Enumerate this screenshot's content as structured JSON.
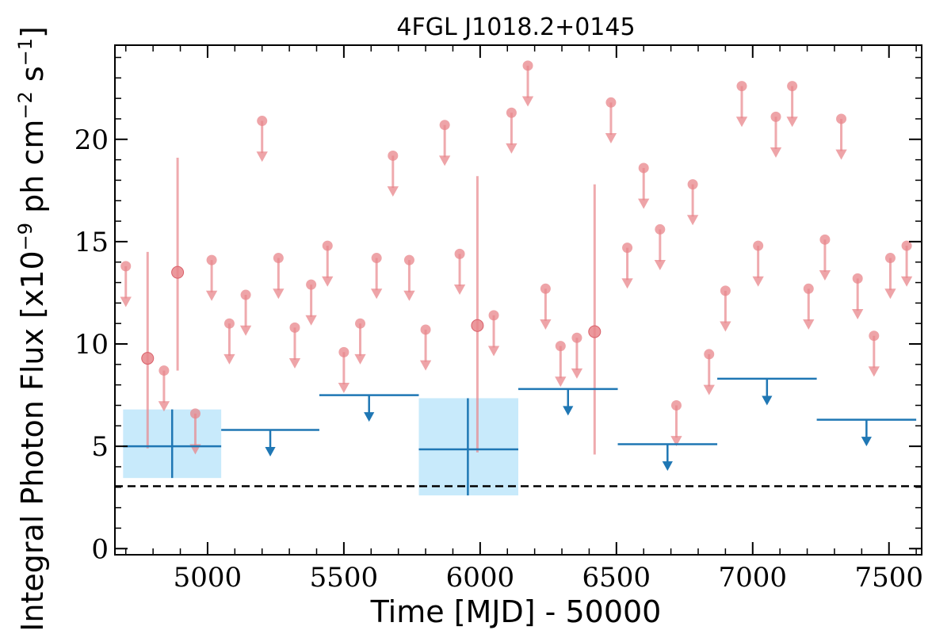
{
  "chart_data": {
    "type": "scatter",
    "title": "4FGL J1018.2+0145",
    "xlabel": "Time [MJD] - 50000",
    "ylabel": "Integral Photon Flux [x10",
    "ylabel_exp1": "−9",
    "ylabel_mid": " ph cm",
    "ylabel_exp2": "−2",
    "ylabel_end": " s",
    "ylabel_exp3": "−1",
    "ylabel_close": "]",
    "xlim": [
      4660,
      7620
    ],
    "ylim": [
      -0.3,
      24.6
    ],
    "xticks": [
      5000,
      5500,
      6000,
      6500,
      7000,
      7500
    ],
    "yticks": [
      0,
      5,
      10,
      15,
      20
    ],
    "baseline": 3.05,
    "colors": {
      "short_bins": "#e8868b",
      "long_bins": "#1f77b4",
      "error_box": "#c8eafb",
      "baseline": "#000000"
    },
    "short_bin_upper_limits": [
      [
        4700,
        13.8
      ],
      [
        4840,
        8.7
      ],
      [
        4955,
        6.6
      ],
      [
        5015,
        14.1
      ],
      [
        5080,
        11.0
      ],
      [
        5140,
        12.4
      ],
      [
        5200,
        20.9
      ],
      [
        5260,
        14.2
      ],
      [
        5320,
        10.8
      ],
      [
        5380,
        12.9
      ],
      [
        5440,
        14.8
      ],
      [
        5500,
        9.6
      ],
      [
        5560,
        11.0
      ],
      [
        5620,
        14.2
      ],
      [
        5680,
        19.2
      ],
      [
        5740,
        14.1
      ],
      [
        5800,
        10.7
      ],
      [
        5870,
        20.7
      ],
      [
        5925,
        14.4
      ],
      [
        6050,
        11.4
      ],
      [
        6115,
        21.3
      ],
      [
        6175,
        23.6
      ],
      [
        6240,
        12.7
      ],
      [
        6295,
        9.9
      ],
      [
        6355,
        10.3
      ],
      [
        6480,
        21.8
      ],
      [
        6540,
        14.7
      ],
      [
        6600,
        18.6
      ],
      [
        6660,
        15.6
      ],
      [
        6720,
        7.0
      ],
      [
        6780,
        17.8
      ],
      [
        6840,
        9.5
      ],
      [
        6900,
        12.6
      ],
      [
        6960,
        22.6
      ],
      [
        7020,
        14.8
      ],
      [
        7085,
        21.1
      ],
      [
        7145,
        22.6
      ],
      [
        7205,
        12.7
      ],
      [
        7265,
        15.1
      ],
      [
        7325,
        21.0
      ],
      [
        7385,
        13.2
      ],
      [
        7445,
        10.4
      ],
      [
        7505,
        14.2
      ],
      [
        7565,
        14.8
      ]
    ],
    "short_bin_detections": [
      {
        "x": 4780,
        "y": 9.3,
        "ylo": 4.9,
        "yhi": 14.5
      },
      {
        "x": 4890,
        "y": 13.5,
        "ylo": 8.7,
        "yhi": 19.1
      },
      {
        "x": 5990,
        "y": 10.9,
        "ylo": 4.7,
        "yhi": 18.2
      },
      {
        "x": 6420,
        "y": 10.6,
        "ylo": 4.6,
        "yhi": 17.8
      }
    ],
    "long_bin_upper_limits": [
      {
        "x0": 5050,
        "x1": 5410,
        "y": 5.8
      },
      {
        "x0": 5410,
        "x1": 5775,
        "y": 7.5
      },
      {
        "x0": 6140,
        "x1": 6505,
        "y": 7.8
      },
      {
        "x0": 6505,
        "x1": 6870,
        "y": 5.1
      },
      {
        "x0": 6870,
        "x1": 7235,
        "y": 8.3
      },
      {
        "x0": 7235,
        "x1": 7600,
        "y": 6.3
      }
    ],
    "long_bin_detections": [
      {
        "x0": 4690,
        "x1": 5050,
        "xc": 4870,
        "y": 5.0,
        "ylo": 3.45,
        "yhi": 6.8
      },
      {
        "x0": 5775,
        "x1": 6140,
        "xc": 5955,
        "y": 4.85,
        "ylo": 2.6,
        "yhi": 7.35
      }
    ]
  }
}
